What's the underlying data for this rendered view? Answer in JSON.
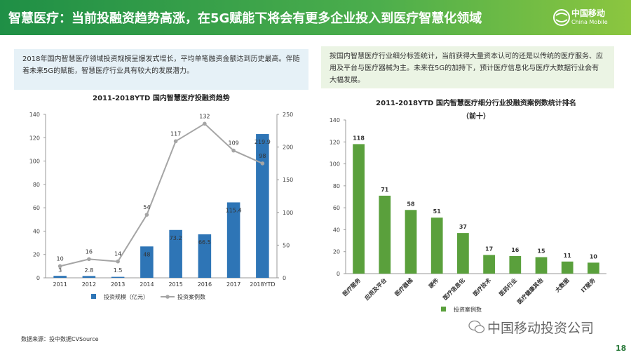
{
  "header": {
    "title": "智慧医疗：当前投融资趋势高涨，在5G赋能下将会有更多企业投入到医疗智慧化领域",
    "logo_cn": "中国移动",
    "logo_en": "China Mobile"
  },
  "left_text": "2018年国内智慧医疗领域投资规模呈爆发式增长，平均单笔融资金额达到历史最高。伴随着未来5G的赋能，智慧医疗行业具有较大的发展潜力。",
  "right_text": "按国内智慧医疗行业细分标签统计，当前获得大量资本认可的还是以传统的医疗服务、应用及平台与医疗器械为主。未来在5G的加持下，预计医疗信息化与医疗大数据行业会有大幅发展。",
  "chart_data": [
    {
      "type": "bar",
      "title": "2011-2018YTD 国内智慧医疗投融资趋势",
      "categories": [
        "2011",
        "2012",
        "2013",
        "2014",
        "2015",
        "2016",
        "2017",
        "2018YTD"
      ],
      "series": [
        {
          "name": "投资规模（亿元）",
          "type": "bar",
          "axis": "y2",
          "color": "#2e75b6",
          "values": [
            3,
            2.8,
            1.5,
            48,
            73.2,
            66.5,
            115.4,
            219.9
          ]
        },
        {
          "name": "投资案例数",
          "type": "line",
          "color": "#a5a5a5",
          "values": [
            10,
            16,
            14,
            54,
            117,
            132,
            109,
            98
          ]
        }
      ],
      "ylim": [
        0,
        140
      ],
      "yticks": [
        0,
        20,
        40,
        60,
        80,
        100,
        120,
        140
      ],
      "y2lim": [
        0,
        250
      ],
      "y2ticks": [
        0,
        50,
        100,
        150,
        200,
        250
      ],
      "grid": false,
      "legend": "bottom"
    },
    {
      "type": "bar",
      "title": "2011-2018YTD 国内智慧医疗细分行业投融资案例数统计排名",
      "subtitle": "（前十）",
      "categories": [
        "医疗服务",
        "应用及平台",
        "医疗器械",
        "硬件",
        "医疗信息化",
        "医疗技术",
        "医药行业",
        "医疗健康其他",
        "大数据",
        "IT服务"
      ],
      "series": [
        {
          "name": "投资案例数",
          "color": "#5aa03c",
          "values": [
            118,
            71,
            58,
            51,
            37,
            17,
            16,
            15,
            11,
            10
          ]
        }
      ],
      "ylim": [
        0,
        140
      ],
      "yticks": [
        0,
        20,
        40,
        60,
        80,
        100,
        120,
        140
      ],
      "grid": false,
      "legend": "bottom"
    }
  ],
  "footer": {
    "source": "数据来源：投中数据CVSource",
    "watermark": "中国移动投资公司",
    "page": "18"
  }
}
